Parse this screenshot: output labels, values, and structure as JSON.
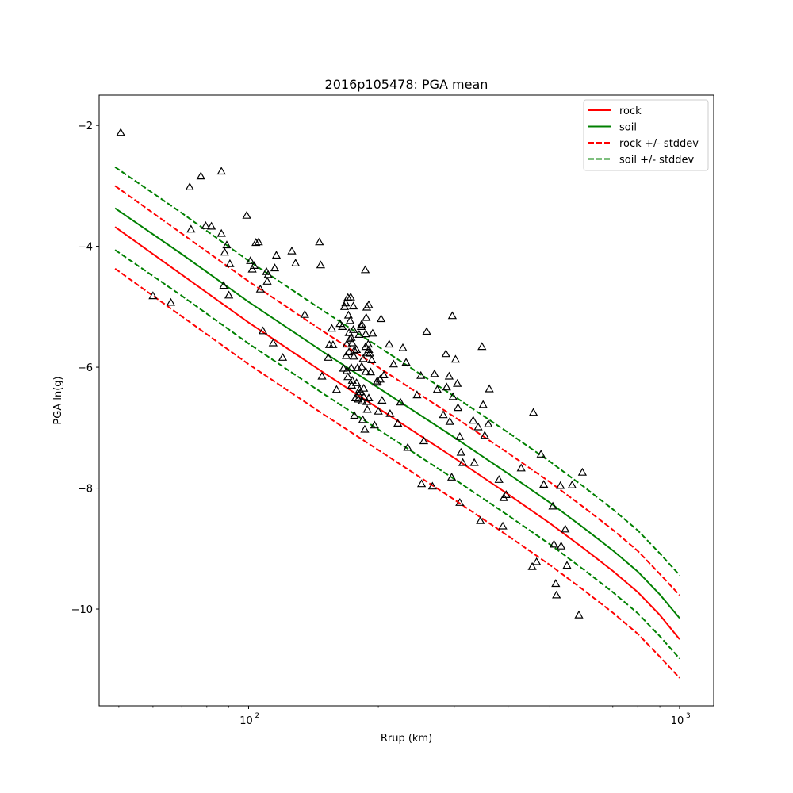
{
  "chart_data": {
    "type": "scatter",
    "title": "2016p105478: PGA mean",
    "xlabel": "Rrup (km)",
    "ylabel": "PGA ln(g)",
    "xscale": "log",
    "xlim": [
      45,
      1200
    ],
    "ylim": [
      -11.6,
      -1.5
    ],
    "xticks": [
      {
        "value": 100,
        "base": "10",
        "exp": "2"
      },
      {
        "value": 1000,
        "base": "10",
        "exp": "3"
      }
    ],
    "yticks": [
      {
        "value": -2,
        "label": "−2"
      },
      {
        "value": -4,
        "label": "−4"
      },
      {
        "value": -6,
        "label": "−6"
      },
      {
        "value": -8,
        "label": "−8"
      },
      {
        "value": -10,
        "label": "−10"
      }
    ],
    "legend_position": "top-right",
    "lines": [
      {
        "name": "rock",
        "color": "#ff0000",
        "dash": "solid",
        "x": [
          49,
          70,
          100,
          150,
          200,
          300,
          400,
          500,
          600,
          700,
          800,
          900,
          1000
        ],
        "y": [
          -3.68,
          -4.47,
          -5.26,
          -6.1,
          -6.68,
          -7.5,
          -8.1,
          -8.58,
          -9.0,
          -9.37,
          -9.72,
          -10.1,
          -10.5
        ]
      },
      {
        "name": "soil",
        "color": "#008000",
        "dash": "solid",
        "x": [
          49,
          70,
          100,
          150,
          200,
          300,
          400,
          500,
          600,
          700,
          800,
          900,
          1000
        ],
        "y": [
          -3.37,
          -4.13,
          -4.92,
          -5.76,
          -6.34,
          -7.16,
          -7.76,
          -8.24,
          -8.66,
          -9.03,
          -9.38,
          -9.76,
          -10.15
        ]
      },
      {
        "name": "rock +/- stddev",
        "color": "#ff0000",
        "dash": "dashed",
        "x": [
          49,
          70,
          100,
          150,
          200,
          300,
          400,
          500,
          600,
          700,
          800,
          900,
          1000
        ],
        "y": [
          -3.0,
          -3.79,
          -4.58,
          -5.42,
          -6.0,
          -6.82,
          -7.42,
          -7.9,
          -8.32,
          -8.69,
          -9.04,
          -9.42,
          -9.77
        ]
      },
      {
        "name": "",
        "color": "#ff0000",
        "dash": "dashed",
        "x": [
          49,
          70,
          100,
          150,
          200,
          300,
          400,
          500,
          600,
          700,
          800,
          900,
          1000
        ],
        "y": [
          -4.37,
          -5.16,
          -5.95,
          -6.79,
          -7.37,
          -8.19,
          -8.79,
          -9.27,
          -9.69,
          -10.06,
          -10.41,
          -10.79,
          -11.14
        ]
      },
      {
        "name": "soil +/- stddev",
        "color": "#008000",
        "dash": "dashed",
        "x": [
          49,
          70,
          100,
          150,
          200,
          300,
          400,
          500,
          600,
          700,
          800,
          900,
          1000
        ],
        "y": [
          -2.69,
          -3.45,
          -4.24,
          -5.08,
          -5.66,
          -6.48,
          -7.08,
          -7.56,
          -7.98,
          -8.35,
          -8.7,
          -9.08,
          -9.44
        ]
      },
      {
        "name": "",
        "color": "#008000",
        "dash": "dashed",
        "x": [
          49,
          70,
          100,
          150,
          200,
          300,
          400,
          500,
          600,
          700,
          800,
          900,
          1000
        ],
        "y": [
          -4.06,
          -4.82,
          -5.61,
          -6.45,
          -7.03,
          -7.85,
          -8.45,
          -8.93,
          -9.35,
          -9.72,
          -10.07,
          -10.45,
          -10.82
        ]
      }
    ],
    "legend": [
      {
        "label": "rock",
        "color": "#ff0000",
        "dash": "solid"
      },
      {
        "label": "soil",
        "color": "#008000",
        "dash": "solid"
      },
      {
        "label": "rock +/- stddev",
        "color": "#ff0000",
        "dash": "dashed"
      },
      {
        "label": "soil +/- stddev",
        "color": "#008000",
        "dash": "dashed"
      }
    ],
    "points": [
      [
        50.5,
        -2.12
      ],
      [
        60,
        -4.82
      ],
      [
        66,
        -4.93
      ],
      [
        73,
        -3.02
      ],
      [
        73.5,
        -3.72
      ],
      [
        77.5,
        -2.84
      ],
      [
        79.5,
        -3.66
      ],
      [
        82,
        -3.67
      ],
      [
        86.5,
        -2.76
      ],
      [
        86.5,
        -3.79
      ],
      [
        87.5,
        -4.65
      ],
      [
        88,
        -4.1
      ],
      [
        89,
        -3.98
      ],
      [
        90,
        -4.81
      ],
      [
        90.5,
        -4.29
      ],
      [
        99,
        -3.49
      ],
      [
        101,
        -4.24
      ],
      [
        102,
        -4.38
      ],
      [
        103,
        -4.32
      ],
      [
        104,
        -3.94
      ],
      [
        105.5,
        -3.93
      ],
      [
        106.5,
        -4.71
      ],
      [
        108,
        -5.4
      ],
      [
        110,
        -4.42
      ],
      [
        110.5,
        -4.58
      ],
      [
        111,
        -4.47
      ],
      [
        114,
        -5.6
      ],
      [
        115,
        -4.36
      ],
      [
        116,
        -4.15
      ],
      [
        120,
        -5.84
      ],
      [
        126,
        -4.08
      ],
      [
        128.5,
        -4.28
      ],
      [
        135,
        -5.13
      ],
      [
        146,
        -3.93
      ],
      [
        147,
        -4.31
      ],
      [
        148,
        -6.15
      ],
      [
        153,
        -5.84
      ],
      [
        154,
        -5.63
      ],
      [
        156,
        -5.36
      ],
      [
        157,
        -5.63
      ],
      [
        160,
        -6.37
      ],
      [
        163,
        -5.28
      ],
      [
        165,
        -5.33
      ],
      [
        166,
        -6.02
      ],
      [
        167,
        -5.0
      ],
      [
        168,
        -4.94
      ],
      [
        168.5,
        -5.81
      ],
      [
        169,
        -5.62
      ],
      [
        169,
        -6.06
      ],
      [
        170,
        -4.85
      ],
      [
        170,
        -6.16
      ],
      [
        170.5,
        -5.14
      ],
      [
        171,
        -5.43
      ],
      [
        171,
        -5.75
      ],
      [
        172,
        -5.53
      ],
      [
        172,
        -5.23
      ],
      [
        172.5,
        -4.84
      ],
      [
        173,
        -6.01
      ],
      [
        173,
        -5.51
      ],
      [
        173.5,
        -6.3
      ],
      [
        174,
        -6.22
      ],
      [
        174,
        -5.6
      ],
      [
        175,
        -5.38
      ],
      [
        175,
        -4.99
      ],
      [
        175.5,
        -5.82
      ],
      [
        176,
        -6.8
      ],
      [
        176,
        -5.72
      ],
      [
        177,
        -6.51
      ],
      [
        178,
        -6.26
      ],
      [
        178,
        -5.71
      ],
      [
        179,
        -6.01
      ],
      [
        179.5,
        -6.53
      ],
      [
        180,
        -6.45
      ],
      [
        180.5,
        -5.46
      ],
      [
        181,
        -6.37
      ],
      [
        182,
        -6.41
      ],
      [
        182.5,
        -5.33
      ],
      [
        183,
        -5.29
      ],
      [
        183,
        -5.99
      ],
      [
        183.5,
        -6.56
      ],
      [
        184,
        -6.87
      ],
      [
        184.5,
        -5.86
      ],
      [
        185,
        -6.49
      ],
      [
        185,
        -6.35
      ],
      [
        186,
        -7.03
      ],
      [
        186.5,
        -4.39
      ],
      [
        187,
        -5.66
      ],
      [
        187,
        -5.45
      ],
      [
        187,
        -6.07
      ],
      [
        187.5,
        -5.18
      ],
      [
        188,
        -5.01
      ],
      [
        188,
        -6.57
      ],
      [
        188.5,
        -6.7
      ],
      [
        188.5,
        -5.76
      ],
      [
        189.5,
        -5.62
      ],
      [
        190,
        -4.97
      ],
      [
        190,
        -6.51
      ],
      [
        190,
        -5.71
      ],
      [
        191,
        -5.77
      ],
      [
        192,
        -6.08
      ],
      [
        193,
        -5.88
      ],
      [
        194,
        -5.44
      ],
      [
        196,
        -6.96
      ],
      [
        198,
        -6.25
      ],
      [
        199,
        -6.23
      ],
      [
        200,
        -6.73
      ],
      [
        202,
        -6.2
      ],
      [
        203,
        -5.2
      ],
      [
        204,
        -6.55
      ],
      [
        206,
        -6.13
      ],
      [
        212,
        -5.62
      ],
      [
        213,
        -6.77
      ],
      [
        217,
        -5.95
      ],
      [
        222,
        -6.93
      ],
      [
        225,
        -6.58
      ],
      [
        228,
        -5.68
      ],
      [
        232,
        -5.92
      ],
      [
        234,
        -7.33
      ],
      [
        246,
        -6.46
      ],
      [
        251,
        -6.14
      ],
      [
        252,
        -7.93
      ],
      [
        255,
        -7.22
      ],
      [
        259,
        -5.41
      ],
      [
        267,
        -7.97
      ],
      [
        270,
        -6.11
      ],
      [
        274,
        -6.37
      ],
      [
        283,
        -6.79
      ],
      [
        287,
        -5.78
      ],
      [
        288,
        -6.33
      ],
      [
        292,
        -6.15
      ],
      [
        293,
        -6.9
      ],
      [
        296,
        -7.82
      ],
      [
        297,
        -5.15
      ],
      [
        298,
        -6.49
      ],
      [
        302,
        -5.87
      ],
      [
        305,
        -6.27
      ],
      [
        306,
        -6.67
      ],
      [
        309,
        -7.15
      ],
      [
        309,
        -8.24
      ],
      [
        311,
        -7.41
      ],
      [
        314,
        -7.58
      ],
      [
        332,
        -6.88
      ],
      [
        334,
        -7.58
      ],
      [
        341,
        -6.99
      ],
      [
        345,
        -8.54
      ],
      [
        348,
        -5.66
      ],
      [
        350,
        -6.62
      ],
      [
        353,
        -7.13
      ],
      [
        360,
        -6.94
      ],
      [
        362,
        -6.36
      ],
      [
        381,
        -7.86
      ],
      [
        389,
        -8.63
      ],
      [
        391,
        -8.16
      ],
      [
        396,
        -8.11
      ],
      [
        429,
        -7.67
      ],
      [
        455,
        -9.3
      ],
      [
        458,
        -6.75
      ],
      [
        466,
        -9.22
      ],
      [
        477,
        -7.44
      ],
      [
        484,
        -7.94
      ],
      [
        508,
        -8.3
      ],
      [
        511,
        -8.93
      ],
      [
        516,
        -9.58
      ],
      [
        518,
        -9.77
      ],
      [
        529,
        -7.96
      ],
      [
        531,
        -8.96
      ],
      [
        543,
        -8.68
      ],
      [
        548,
        -9.28
      ],
      [
        563,
        -7.95
      ],
      [
        584,
        -10.1
      ],
      [
        595,
        -7.74
      ]
    ]
  }
}
